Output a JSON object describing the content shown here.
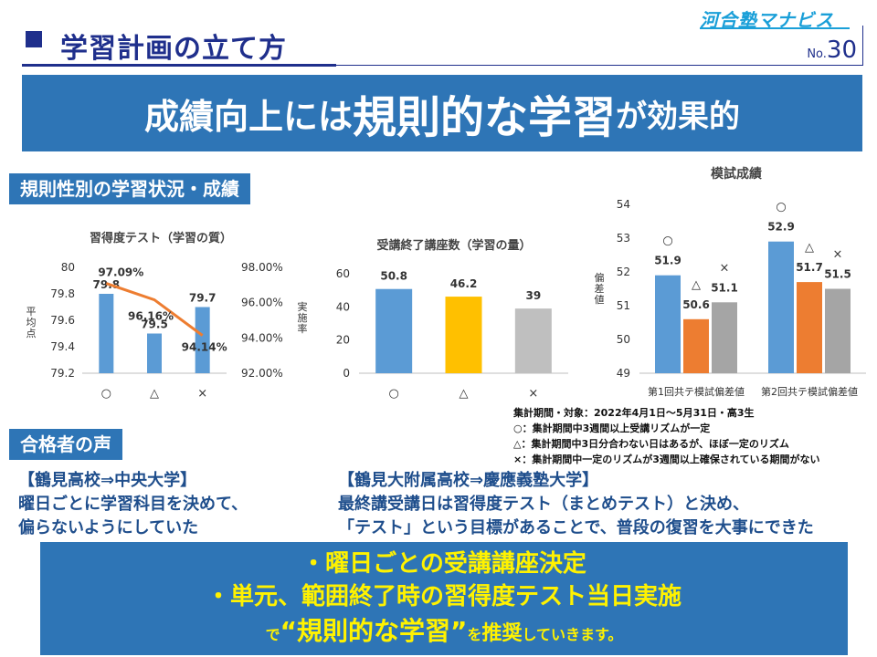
{
  "header": {
    "title": "学習計画の立て方",
    "brand": "河合塾マナビス",
    "page_prefix": "No.",
    "page_number": "30"
  },
  "banner": {
    "part1": "成績向上には",
    "part2": "規則的な学習",
    "part3": "が効果的"
  },
  "section_rules": "規則性別の学習状況・成績",
  "section_voice": "合格者の声",
  "chart_data": [
    {
      "type": "bar",
      "title": "習得度テスト（学習の質）",
      "categories": [
        "○",
        "△",
        "×"
      ],
      "values": [
        79.8,
        79.5,
        79.7
      ],
      "value_labels": [
        "79.8",
        "79.5",
        "79.7"
      ],
      "ylabel": "平均点",
      "ylim": [
        79.2,
        80
      ],
      "yticks": [
        "79.2",
        "79.4",
        "79.6",
        "79.8",
        "80"
      ],
      "color": "#5b9bd5",
      "line_series": {
        "type": "line",
        "values": [
          97.09,
          96.16,
          94.14
        ],
        "value_labels": [
          "97.09%",
          "96.16%",
          "94.14%"
        ],
        "ylabel": "実施率",
        "ylim": [
          92,
          98
        ],
        "yticks": [
          "92.00%",
          "94.00%",
          "96.00%",
          "98.00%"
        ],
        "color": "#ed7d31"
      }
    },
    {
      "type": "bar",
      "title": "受講終了講座数（学習の量）",
      "categories": [
        "○",
        "△",
        "×"
      ],
      "values": [
        50.8,
        46.2,
        39
      ],
      "value_labels": [
        "50.8",
        "46.2",
        "39"
      ],
      "ylim": [
        0,
        60
      ],
      "yticks": [
        "0",
        "20",
        "40",
        "60"
      ],
      "colors": [
        "#5b9bd5",
        "#ffc000",
        "#bfbfbf"
      ]
    },
    {
      "type": "bar",
      "title": "模試成績",
      "categories": [
        "第1回共テ模試偏差値",
        "第2回共テ模試偏差値"
      ],
      "series": [
        {
          "marker": "○",
          "values": [
            51.9,
            52.9
          ],
          "value_labels": [
            "51.9",
            "52.9"
          ],
          "color": "#5b9bd5"
        },
        {
          "marker": "△",
          "values": [
            50.6,
            51.7
          ],
          "value_labels": [
            "50.6",
            "51.7"
          ],
          "color": "#ed7d31"
        },
        {
          "marker": "×",
          "values": [
            51.1,
            51.5
          ],
          "value_labels": [
            "51.1",
            "51.5"
          ],
          "color": "#a5a5a5"
        }
      ],
      "ylabel": "偏差値",
      "ylim": [
        49,
        54
      ],
      "yticks": [
        "49",
        "50",
        "51",
        "52",
        "53",
        "54"
      ]
    }
  ],
  "notes": [
    "集計期間・対象：2022年4月1日～5月31日・高3生",
    "○：集計期間中3週間以上受講リズムが一定",
    "△：集計期間中3日分合わない日はあるが、ほぼ一定のリズム",
    "×：集計期間中一定のリズムが3週間以上確保されている期間がない"
  ],
  "voices": [
    {
      "title": "【鶴見高校⇒中央大学】",
      "lines": [
        "曜日ごとに学習科目を決めて、",
        "偏らないようにしていた"
      ]
    },
    {
      "title": "【鶴見大附属高校⇒慶應義塾大学】",
      "lines": [
        "最終講受講日は習得度テスト（まとめテスト）と決め、",
        "「テスト」という目標があることで、普段の復習を大事にできた"
      ]
    }
  ],
  "bottom": {
    "line1": "・曜日ごとの受講講座決定",
    "line2": "・単元、範囲終了時の習得度テスト当日実施",
    "line3_a": "で",
    "line3_b": "“規則的な学習”",
    "line3_c": "を",
    "line3_d": "推奨",
    "line3_e": "していきます。"
  }
}
